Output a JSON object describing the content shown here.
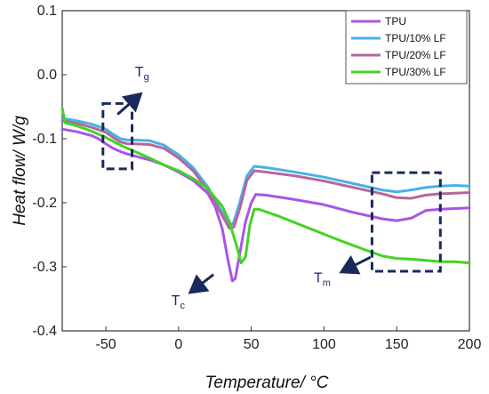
{
  "chart_data": {
    "type": "line",
    "xlabel": "Temperature/ °C",
    "ylabel": "Heat flow/ W/g",
    "xlim": [
      -80,
      200
    ],
    "ylim": [
      -0.4,
      0.1
    ],
    "xticks": [
      -50,
      0,
      50,
      100,
      150,
      200
    ],
    "yticks": [
      0.1,
      0.0,
      -0.1,
      -0.2,
      -0.3,
      -0.4
    ],
    "grid": false,
    "legend_position": "top-right",
    "series": [
      {
        "name": "TPU",
        "color": "#a855e8",
        "points": [
          [
            -80,
            -0.085
          ],
          [
            -70,
            -0.089
          ],
          [
            -60,
            -0.095
          ],
          [
            -55,
            -0.1
          ],
          [
            -50,
            -0.108
          ],
          [
            -45,
            -0.115
          ],
          [
            -40,
            -0.12
          ],
          [
            -35,
            -0.124
          ],
          [
            -30,
            -0.127
          ],
          [
            -20,
            -0.133
          ],
          [
            -10,
            -0.141
          ],
          [
            0,
            -0.152
          ],
          [
            10,
            -0.165
          ],
          [
            20,
            -0.185
          ],
          [
            25,
            -0.205
          ],
          [
            30,
            -0.24
          ],
          [
            34,
            -0.29
          ],
          [
            37,
            -0.322
          ],
          [
            39,
            -0.318
          ],
          [
            42,
            -0.28
          ],
          [
            46,
            -0.23
          ],
          [
            50,
            -0.2
          ],
          [
            53,
            -0.187
          ],
          [
            60,
            -0.188
          ],
          [
            80,
            -0.195
          ],
          [
            100,
            -0.203
          ],
          [
            120,
            -0.215
          ],
          [
            140,
            -0.225
          ],
          [
            150,
            -0.228
          ],
          [
            160,
            -0.224
          ],
          [
            170,
            -0.212
          ],
          [
            180,
            -0.21
          ],
          [
            190,
            -0.209
          ],
          [
            200,
            -0.208
          ]
        ]
      },
      {
        "name": "TPU/10% LF",
        "color": "#49b0e8",
        "points": [
          [
            -80,
            -0.068
          ],
          [
            -70,
            -0.072
          ],
          [
            -60,
            -0.077
          ],
          [
            -50,
            -0.085
          ],
          [
            -45,
            -0.093
          ],
          [
            -40,
            -0.1
          ],
          [
            -35,
            -0.102
          ],
          [
            -30,
            -0.102
          ],
          [
            -20,
            -0.103
          ],
          [
            -10,
            -0.11
          ],
          [
            0,
            -0.125
          ],
          [
            10,
            -0.145
          ],
          [
            20,
            -0.175
          ],
          [
            30,
            -0.215
          ],
          [
            35,
            -0.238
          ],
          [
            38,
            -0.23
          ],
          [
            42,
            -0.2
          ],
          [
            47,
            -0.158
          ],
          [
            52,
            -0.143
          ],
          [
            60,
            -0.145
          ],
          [
            80,
            -0.152
          ],
          [
            100,
            -0.16
          ],
          [
            120,
            -0.17
          ],
          [
            140,
            -0.18
          ],
          [
            150,
            -0.183
          ],
          [
            160,
            -0.18
          ],
          [
            170,
            -0.176
          ],
          [
            180,
            -0.174
          ],
          [
            190,
            -0.173
          ],
          [
            200,
            -0.174
          ]
        ]
      },
      {
        "name": "TPU/20% LF",
        "color": "#b5679a",
        "points": [
          [
            -80,
            -0.072
          ],
          [
            -70,
            -0.076
          ],
          [
            -60,
            -0.082
          ],
          [
            -50,
            -0.09
          ],
          [
            -45,
            -0.098
          ],
          [
            -40,
            -0.105
          ],
          [
            -35,
            -0.108
          ],
          [
            -30,
            -0.108
          ],
          [
            -20,
            -0.109
          ],
          [
            -10,
            -0.115
          ],
          [
            0,
            -0.13
          ],
          [
            10,
            -0.15
          ],
          [
            20,
            -0.18
          ],
          [
            30,
            -0.22
          ],
          [
            35,
            -0.24
          ],
          [
            38,
            -0.238
          ],
          [
            42,
            -0.21
          ],
          [
            47,
            -0.165
          ],
          [
            52,
            -0.15
          ],
          [
            60,
            -0.152
          ],
          [
            80,
            -0.158
          ],
          [
            100,
            -0.166
          ],
          [
            120,
            -0.176
          ],
          [
            140,
            -0.186
          ],
          [
            150,
            -0.192
          ],
          [
            160,
            -0.193
          ],
          [
            170,
            -0.188
          ],
          [
            180,
            -0.186
          ],
          [
            190,
            -0.185
          ],
          [
            200,
            -0.184
          ]
        ]
      },
      {
        "name": "TPU/30% LF",
        "color": "#44d324",
        "points": [
          [
            -80,
            -0.052
          ],
          [
            -78,
            -0.075
          ],
          [
            -70,
            -0.08
          ],
          [
            -60,
            -0.088
          ],
          [
            -50,
            -0.098
          ],
          [
            -40,
            -0.11
          ],
          [
            -30,
            -0.12
          ],
          [
            -20,
            -0.13
          ],
          [
            -10,
            -0.141
          ],
          [
            0,
            -0.15
          ],
          [
            10,
            -0.162
          ],
          [
            20,
            -0.178
          ],
          [
            30,
            -0.205
          ],
          [
            35,
            -0.23
          ],
          [
            40,
            -0.268
          ],
          [
            43,
            -0.294
          ],
          [
            46,
            -0.285
          ],
          [
            49,
            -0.235
          ],
          [
            52,
            -0.21
          ],
          [
            55,
            -0.21
          ],
          [
            70,
            -0.222
          ],
          [
            90,
            -0.24
          ],
          [
            110,
            -0.258
          ],
          [
            130,
            -0.275
          ],
          [
            140,
            -0.283
          ],
          [
            150,
            -0.287
          ],
          [
            160,
            -0.288
          ],
          [
            170,
            -0.29
          ],
          [
            180,
            -0.292
          ],
          [
            190,
            -0.292
          ],
          [
            200,
            -0.294
          ]
        ]
      }
    ],
    "annotations": [
      {
        "label": "T",
        "sub": "g",
        "box": [
          [
            -52,
            -0.045
          ],
          [
            -32,
            -0.147
          ]
        ],
        "arrow": [
          [
            -42,
            -0.062
          ],
          [
            -26,
            -0.03
          ]
        ],
        "text_at": [
          -30,
          -0.003
        ]
      },
      {
        "label": "T",
        "sub": "c",
        "arrow": [
          [
            24,
            -0.312
          ],
          [
            8,
            -0.34
          ]
        ],
        "text_at": [
          -5,
          -0.36
        ]
      },
      {
        "label": "T",
        "sub": "m",
        "box": [
          [
            133,
            -0.153
          ],
          [
            180,
            -0.307
          ]
        ],
        "arrow": [
          [
            132,
            -0.285
          ],
          [
            112,
            -0.308
          ]
        ],
        "text_at": [
          93,
          -0.324
        ]
      }
    ]
  }
}
